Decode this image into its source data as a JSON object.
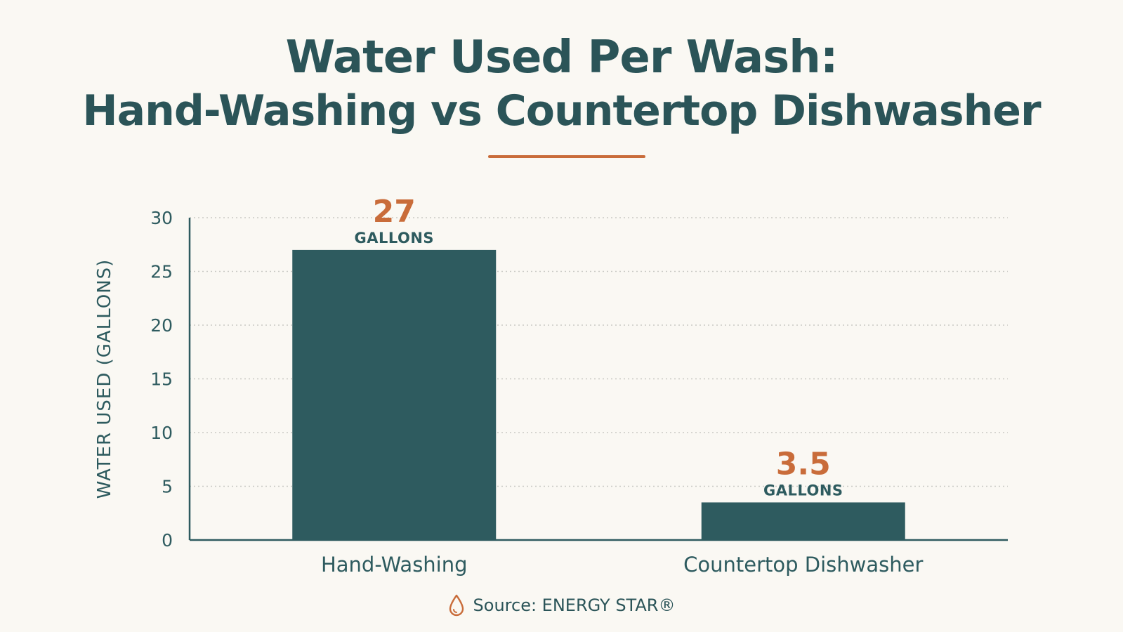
{
  "header": {
    "title_line1": "Water Used Per Wash:",
    "title_line2": "Hand-Washing vs Countertop Dishwasher"
  },
  "colors": {
    "primary": "#2e5b5f",
    "accent": "#c96c3a",
    "background": "#faf8f3",
    "grid": "#c9c9c4"
  },
  "chart_data": {
    "type": "bar",
    "categories": [
      "Hand-Washing",
      "Countertop Dishwasher"
    ],
    "values": [
      27,
      3.5
    ],
    "value_labels": [
      "27",
      "3.5"
    ],
    "value_unit_label": "GALLONS",
    "ylabel": "WATER USED (GALLONS)",
    "xlabel": "",
    "ylim": [
      0,
      30
    ],
    "yticks": [
      0,
      5,
      10,
      15,
      20,
      25,
      30
    ],
    "grid": true
  },
  "footer": {
    "source_icon": "water-drop-icon",
    "source_text": "Source: ENERGY STAR®"
  }
}
